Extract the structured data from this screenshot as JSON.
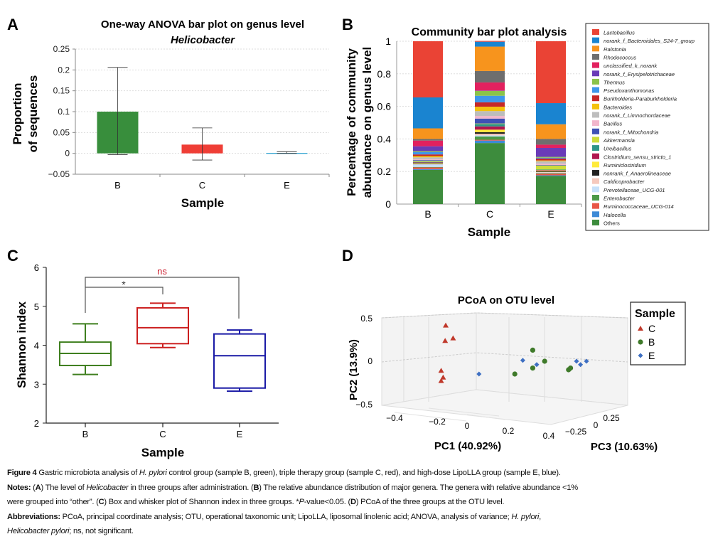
{
  "panels": {
    "A": "A",
    "B": "B",
    "C": "C",
    "D": "D"
  },
  "chart_data": [
    {
      "panel": "A",
      "type": "bar",
      "title": "One-way ANOVA bar plot on genus level",
      "subtitle": "Helicobacter",
      "xlabel": "Sample",
      "ylabel": [
        "Proportion",
        "of sequences"
      ],
      "categories": [
        "B",
        "C",
        "E"
      ],
      "values": [
        0.1,
        0.021,
        0.001
      ],
      "error_low": [
        -0.003,
        -0.016,
        0.0
      ],
      "error_high": [
        0.206,
        0.061,
        0.004
      ],
      "colors": [
        "#388e3c",
        "#ef3e36",
        "#2aa0d0"
      ],
      "ylim": [
        -0.05,
        0.25
      ],
      "yticks": [
        "−0.05",
        "0",
        "0.05",
        "0.1",
        "0.15",
        "0.2",
        "0.25"
      ],
      "ytick_values": [
        -0.05,
        0,
        0.05,
        0.1,
        0.15,
        0.2,
        0.25
      ],
      "grid": true
    },
    {
      "panel": "B",
      "type": "bar",
      "stacked": true,
      "title": "Community bar plot analysis",
      "xlabel": "Sample",
      "ylabel": [
        "Percentage of community",
        "abundance on genus level"
      ],
      "categories": [
        "B",
        "C",
        "E"
      ],
      "ylim": [
        0,
        1
      ],
      "yticks": [
        "0",
        "0.2",
        "0.4",
        "0.6",
        "0.8",
        "1"
      ],
      "ytick_values": [
        0,
        0.2,
        0.4,
        0.6,
        0.8,
        1
      ],
      "legend_position": "right",
      "series": [
        {
          "name": "Lactobacillus",
          "color": "#ea4335",
          "values": [
            0.345,
            0.005,
            0.38
          ]
        },
        {
          "name": "norank_f_Bacteroidales_S24-7_group",
          "color": "#1a84d0",
          "values": [
            0.19,
            0.03,
            0.13
          ]
        },
        {
          "name": "Ralstonia",
          "color": "#f7941d",
          "values": [
            0.065,
            0.15,
            0.09
          ]
        },
        {
          "name": "Rhodococcus",
          "color": "#6e6e6e",
          "values": [
            0.01,
            0.07,
            0.035
          ]
        },
        {
          "name": "unclassified_k_norank",
          "color": "#e2215f",
          "values": [
            0.035,
            0.05,
            0.02
          ]
        },
        {
          "name": "norank_f_Erysipelotrichaceae",
          "color": "#6a3bb8",
          "values": [
            0.03,
            0.002,
            0.055
          ]
        },
        {
          "name": "Thermus",
          "color": "#8bc34a",
          "values": [
            0.005,
            0.03,
            0.005
          ]
        },
        {
          "name": "Pseudoxanthomonas",
          "color": "#3e97ea",
          "values": [
            0.015,
            0.04,
            0.005
          ]
        },
        {
          "name": "Burkholderia-Paraburkholderia",
          "color": "#c62828",
          "values": [
            0.01,
            0.027,
            0.012
          ]
        },
        {
          "name": "Bacteroides",
          "color": "#f4c20d",
          "values": [
            0.008,
            0.027,
            0.005
          ]
        },
        {
          "name": "norank_f_Limnochordaceae",
          "color": "#bdbdbd",
          "values": [
            0.012,
            0.03,
            0.015
          ]
        },
        {
          "name": "Bacillus",
          "color": "#f2b6cc",
          "values": [
            0.005,
            0.016,
            0.008
          ]
        },
        {
          "name": "norank_f_Mitochondria",
          "color": "#3f51b5",
          "values": [
            0.005,
            0.03,
            0.003
          ]
        },
        {
          "name": "Akkermansia",
          "color": "#cddc39",
          "values": [
            0.006,
            0.003,
            0.025
          ]
        },
        {
          "name": "Ureibacillus",
          "color": "#2e9688",
          "values": [
            0.003,
            0.015,
            0.003
          ]
        },
        {
          "name": "Clostridium_sensu_stricto_1",
          "color": "#b0164f",
          "values": [
            0.003,
            0.02,
            0.003
          ]
        },
        {
          "name": "Ruminiclostridium",
          "color": "#ffeb3b",
          "values": [
            0.003,
            0.015,
            0.005
          ]
        },
        {
          "name": "nonrank_f_Anaerolineaceae",
          "color": "#212121",
          "values": [
            0.004,
            0.01,
            0.004
          ]
        },
        {
          "name": "Caldicoprobacter",
          "color": "#f5c9bd",
          "values": [
            0.003,
            0.01,
            0.003
          ]
        },
        {
          "name": "Prevotellaceae_UCG-001",
          "color": "#c6e1fa",
          "values": [
            0.015,
            0.007,
            0.003
          ]
        },
        {
          "name": "Enterobacter",
          "color": "#4b9a48",
          "values": [
            0.003,
            0.02,
            0.004
          ]
        },
        {
          "name": "Ruminococcaceae_UCG-014",
          "color": "#e85545",
          "values": [
            0.01,
            0.005,
            0.01
          ]
        },
        {
          "name": "Halocella",
          "color": "#3d8ad6",
          "values": [
            0.005,
            0.015,
            0.004
          ]
        },
        {
          "name": "Others",
          "color": "#3d8c3d",
          "values": [
            0.21,
            0.375,
            0.173
          ]
        }
      ]
    },
    {
      "panel": "C",
      "type": "box",
      "xlabel": "Sample",
      "ylabel": "Shannon index",
      "categories": [
        "B",
        "C",
        "E"
      ],
      "colors": [
        "#3f7f1f",
        "#cc1f1f",
        "#1a1aa6"
      ],
      "boxes": [
        {
          "min": 3.25,
          "q1": 3.48,
          "median": 3.79,
          "q3": 4.08,
          "max": 4.55
        },
        {
          "min": 3.94,
          "q1": 4.04,
          "median": 4.45,
          "q3": 4.96,
          "max": 5.08
        },
        {
          "min": 2.82,
          "q1": 2.9,
          "median": 3.73,
          "q3": 4.29,
          "max": 4.39
        }
      ],
      "ylim": [
        2,
        6
      ],
      "yticks": [
        "2",
        "3",
        "4",
        "5",
        "6"
      ],
      "ytick_values": [
        2,
        3,
        4,
        5,
        6
      ],
      "annotations": [
        {
          "from": "B",
          "to": "C",
          "label": "*",
          "color": "#333333"
        },
        {
          "from": "B",
          "to": "E",
          "label": "ns",
          "color": "#cc1f2f"
        }
      ]
    },
    {
      "panel": "D",
      "type": "scatter",
      "projection": "3d",
      "title": "PCoA on OTU level",
      "xlabel": "PC1 (40.92%)",
      "ylabel": "PC2 (13.9%)",
      "zlabel": "PC3 (10.63%)",
      "xticks": [
        "−0.4",
        "−0.2",
        "0",
        "0.2",
        "0.4"
      ],
      "yticks": [
        "0.5",
        "0",
        "−0.5"
      ],
      "zticks": [
        "−0.25",
        "0",
        "0.25"
      ],
      "legend_title": "Sample",
      "legend_position": "right",
      "series": [
        {
          "name": "C",
          "marker": "triangle",
          "color": "#c0392b",
          "points": [
            [
              -0.107,
              0.42
            ],
            [
              -0.11,
              0.24
            ],
            [
              -0.07,
              0.27
            ],
            [
              -0.13,
              -0.11
            ],
            [
              -0.12,
              -0.19
            ],
            [
              -0.13,
              -0.23
            ]
          ]
        },
        {
          "name": "B",
          "marker": "circle",
          "color": "#3f7a2a",
          "points": [
            [
              0.33,
              0.13
            ],
            [
              0.39,
              0.0
            ],
            [
              0.33,
              -0.08
            ],
            [
              0.24,
              -0.15
            ],
            [
              0.51,
              -0.1
            ],
            [
              0.52,
              -0.08
            ]
          ]
        },
        {
          "name": "E",
          "marker": "diamond",
          "color": "#3e6fc2",
          "points": [
            [
              0.06,
              -0.15
            ],
            [
              0.28,
              0.01
            ],
            [
              0.35,
              -0.04
            ],
            [
              0.55,
              0.0
            ],
            [
              0.57,
              -0.04
            ],
            [
              0.6,
              0.0
            ]
          ]
        }
      ]
    }
  ],
  "caption": {
    "lines": [
      [
        {
          "t": "Figure 4",
          "s": "b"
        },
        {
          "t": " Gastric microbiota analysis of "
        },
        {
          "t": "H. pylori",
          "s": "i"
        },
        {
          "t": " control group (sample B, green), triple therapy group (sample C, red), and high-dose LipoLLA group (sample E, blue)."
        }
      ],
      [
        {
          "t": "Notes:",
          "s": "b"
        },
        {
          "t": " ("
        },
        {
          "t": "A",
          "s": "b"
        },
        {
          "t": ") The level of "
        },
        {
          "t": "Helicobacter",
          "s": "i"
        },
        {
          "t": " in three groups after administration. ("
        },
        {
          "t": "B",
          "s": "b"
        },
        {
          "t": ") The relative abundance distribution of major genera. The genera with relative abundance <1%"
        }
      ],
      [
        {
          "t": "were grouped into “other”. ("
        },
        {
          "t": "C",
          "s": "b"
        },
        {
          "t": ") Box and whisker plot of Shannon index in three groups. *"
        },
        {
          "t": "P",
          "s": "i"
        },
        {
          "t": "-value<0.05. ("
        },
        {
          "t": "D",
          "s": "b"
        },
        {
          "t": ") PCoA of the three groups at the OTU level."
        }
      ],
      [
        {
          "t": "Abbreviations:",
          "s": "b"
        },
        {
          "t": " PCoA, principal coordinate analysis; OTU, operational taxonomic unit; LipoLLA, liposomal linolenic acid; ANOVA, analysis of variance; "
        },
        {
          "t": "H. pylori",
          "s": "i"
        },
        {
          "t": ","
        }
      ],
      [
        {
          "t": "Helicobacter pylori",
          "s": "i"
        },
        {
          "t": "; ns, not significant."
        }
      ]
    ]
  }
}
